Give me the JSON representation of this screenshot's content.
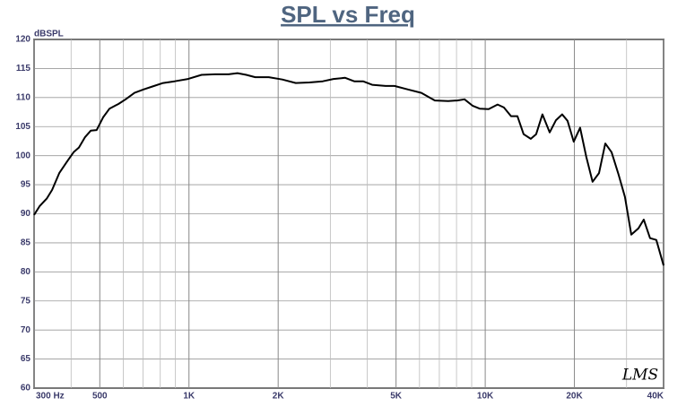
{
  "chart_data": {
    "type": "line",
    "title": "SPL vs Freq",
    "ylabel": "dBSPL",
    "watermark": "LMS",
    "xscale": "log",
    "grid": true,
    "xlim": [
      300,
      40000
    ],
    "ylim": [
      60,
      120
    ],
    "xticks": [
      {
        "value": 300,
        "label": "300 Hz"
      },
      500,
      {
        "value": 1000,
        "label": "1K"
      },
      {
        "value": 2000,
        "label": "2K"
      },
      {
        "value": 5000,
        "label": "5K"
      },
      {
        "value": 10000,
        "label": "10K"
      },
      {
        "value": 20000,
        "label": "20K"
      },
      {
        "value": 40000,
        "label": "40K"
      }
    ],
    "xminor": [
      400,
      600,
      700,
      800,
      900,
      3000,
      4000,
      6000,
      7000,
      8000,
      9000,
      30000
    ],
    "yticks": [
      60,
      65,
      70,
      75,
      80,
      85,
      90,
      95,
      100,
      105,
      110,
      115,
      120
    ],
    "series": [
      {
        "name": "SPL",
        "color": "#000000",
        "x": [
          300,
          313,
          331,
          345,
          365,
          388,
          408,
          425,
          446,
          466,
          488,
          513,
          539,
          578,
          611,
          655,
          702,
          753,
          818,
          894,
          993,
          1103,
          1225,
          1360,
          1458,
          1561,
          1673,
          1859,
          2065,
          2293,
          2550,
          2829,
          3075,
          3367,
          3612,
          3871,
          4152,
          4610,
          4941,
          5484,
          6090,
          6760,
          7500,
          8050,
          8510,
          9060,
          9580,
          10270,
          11010,
          11560,
          12220,
          12840,
          13480,
          14250,
          14860,
          15600,
          16500,
          17330,
          18190,
          18960,
          19900,
          20900,
          21940,
          23030,
          24210,
          25420,
          26690,
          28210,
          29630,
          31120,
          32900,
          34300,
          36000,
          37800,
          40000
        ],
        "values": [
          89.8,
          91.3,
          92.6,
          94.1,
          97.0,
          99.0,
          100.6,
          101.4,
          103.2,
          104.3,
          104.4,
          106.6,
          108.1,
          108.9,
          109.7,
          110.8,
          111.4,
          111.9,
          112.5,
          112.8,
          113.2,
          113.9,
          114.0,
          114.0,
          114.2,
          113.9,
          113.5,
          113.5,
          113.1,
          112.5,
          112.6,
          112.8,
          113.2,
          113.4,
          112.8,
          112.8,
          112.2,
          112.0,
          112.0,
          111.4,
          110.8,
          109.5,
          109.4,
          109.5,
          109.7,
          108.6,
          108.1,
          108.0,
          108.8,
          108.3,
          106.8,
          106.8,
          103.7,
          102.9,
          103.7,
          107.1,
          104.0,
          106.1,
          107.1,
          106.0,
          102.4,
          104.8,
          99.8,
          95.5,
          97.0,
          102.1,
          100.6,
          96.7,
          92.9,
          86.4,
          87.5,
          89.0,
          85.8,
          85.5,
          81.1
        ]
      }
    ]
  }
}
